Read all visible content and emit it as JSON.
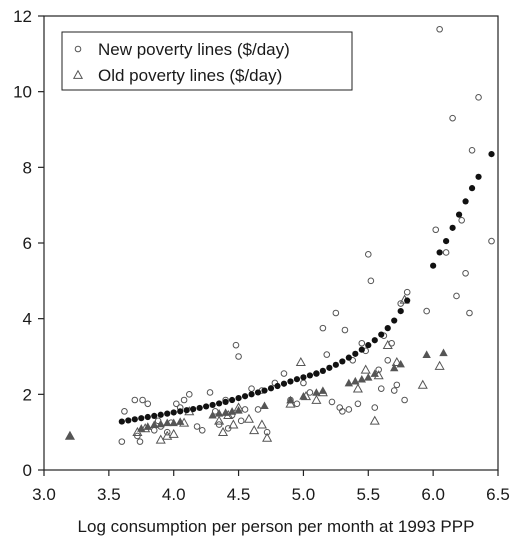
{
  "chart_data": {
    "type": "scatter",
    "title": "",
    "xlabel": "Log consumption per person per month at 1993 PPP",
    "ylabel": "",
    "xlim": [
      3.0,
      6.5
    ],
    "ylim": [
      0,
      12
    ],
    "xticks": [
      3.0,
      3.5,
      4.0,
      4.5,
      5.0,
      5.5,
      6.0,
      6.5
    ],
    "xtick_labels": [
      "3.0",
      "3.5",
      "4.0",
      "4.5",
      "5.0",
      "5.5",
      "6.0",
      "6.5"
    ],
    "yticks": [
      0,
      2,
      4,
      6,
      8,
      10,
      12
    ],
    "ytick_labels": [
      "0",
      "2",
      "4",
      "6",
      "8",
      "10",
      "12"
    ],
    "grid": false,
    "legend": {
      "position": "top-left",
      "entries": [
        "New poverty lines ($/day)",
        "Old poverty lines ($/day)"
      ]
    },
    "series": [
      {
        "name": "New poverty lines ($/day)",
        "marker": "open-circle",
        "color": "#555555",
        "points": [
          [
            3.6,
            0.75
          ],
          [
            3.62,
            1.55
          ],
          [
            3.7,
            1.85
          ],
          [
            3.72,
            0.9
          ],
          [
            3.74,
            0.75
          ],
          [
            3.76,
            1.85
          ],
          [
            3.8,
            1.75
          ],
          [
            3.85,
            1.05
          ],
          [
            3.88,
            1.3
          ],
          [
            3.9,
            1.15
          ],
          [
            3.95,
            1.0
          ],
          [
            3.98,
            1.25
          ],
          [
            4.02,
            1.75
          ],
          [
            4.05,
            1.65
          ],
          [
            4.08,
            1.85
          ],
          [
            4.12,
            2.0
          ],
          [
            4.18,
            1.15
          ],
          [
            4.22,
            1.05
          ],
          [
            4.28,
            2.05
          ],
          [
            4.32,
            1.55
          ],
          [
            4.35,
            1.2
          ],
          [
            4.4,
            1.85
          ],
          [
            4.42,
            1.1
          ],
          [
            4.45,
            1.45
          ],
          [
            4.48,
            3.3
          ],
          [
            4.5,
            3.0
          ],
          [
            4.52,
            1.3
          ],
          [
            4.55,
            1.6
          ],
          [
            4.6,
            2.15
          ],
          [
            4.65,
            1.6
          ],
          [
            4.68,
            2.1
          ],
          [
            4.72,
            1.0
          ],
          [
            4.78,
            2.3
          ],
          [
            4.85,
            2.55
          ],
          [
            4.9,
            1.85
          ],
          [
            4.95,
            1.75
          ],
          [
            5.0,
            2.3
          ],
          [
            5.05,
            2.05
          ],
          [
            5.1,
            2.55
          ],
          [
            5.15,
            3.75
          ],
          [
            5.18,
            3.05
          ],
          [
            5.22,
            1.8
          ],
          [
            5.25,
            4.15
          ],
          [
            5.28,
            1.65
          ],
          [
            5.3,
            1.55
          ],
          [
            5.32,
            3.7
          ],
          [
            5.35,
            1.6
          ],
          [
            5.38,
            2.9
          ],
          [
            5.42,
            1.75
          ],
          [
            5.45,
            3.35
          ],
          [
            5.48,
            3.15
          ],
          [
            5.5,
            5.7
          ],
          [
            5.52,
            5.0
          ],
          [
            5.55,
            1.65
          ],
          [
            5.58,
            2.65
          ],
          [
            5.6,
            2.15
          ],
          [
            5.62,
            3.55
          ],
          [
            5.65,
            2.9
          ],
          [
            5.68,
            3.35
          ],
          [
            5.7,
            2.1
          ],
          [
            5.72,
            2.25
          ],
          [
            5.75,
            4.4
          ],
          [
            5.78,
            1.85
          ],
          [
            5.8,
            4.7
          ],
          [
            5.95,
            4.2
          ],
          [
            6.02,
            6.35
          ],
          [
            6.05,
            11.65
          ],
          [
            6.1,
            5.75
          ],
          [
            6.15,
            9.3
          ],
          [
            6.18,
            4.6
          ],
          [
            6.22,
            6.6
          ],
          [
            6.25,
            5.2
          ],
          [
            6.28,
            4.15
          ],
          [
            6.3,
            8.45
          ],
          [
            6.35,
            9.85
          ],
          [
            6.45,
            6.05
          ]
        ]
      },
      {
        "name": "Old poverty lines ($/day)",
        "marker": "open-triangle",
        "color": "#555555",
        "points": [
          [
            3.2,
            0.9
          ],
          [
            3.72,
            1.0
          ],
          [
            3.78,
            1.1
          ],
          [
            3.9,
            0.8
          ],
          [
            3.95,
            0.9
          ],
          [
            4.0,
            0.95
          ],
          [
            4.08,
            1.25
          ],
          [
            4.12,
            1.55
          ],
          [
            4.35,
            1.3
          ],
          [
            4.38,
            1.0
          ],
          [
            4.42,
            1.45
          ],
          [
            4.46,
            1.2
          ],
          [
            4.5,
            1.65
          ],
          [
            4.58,
            1.35
          ],
          [
            4.62,
            1.05
          ],
          [
            4.68,
            1.2
          ],
          [
            4.72,
            0.85
          ],
          [
            4.9,
            1.75
          ],
          [
            4.98,
            2.85
          ],
          [
            5.02,
            1.95
          ],
          [
            5.1,
            1.85
          ],
          [
            5.15,
            2.05
          ],
          [
            5.42,
            2.15
          ],
          [
            5.48,
            2.65
          ],
          [
            5.55,
            1.3
          ],
          [
            5.58,
            2.5
          ],
          [
            5.65,
            3.3
          ],
          [
            5.72,
            2.85
          ],
          [
            5.78,
            4.5
          ],
          [
            5.92,
            2.25
          ],
          [
            6.05,
            2.75
          ]
        ]
      },
      {
        "name": "",
        "marker": "filled-circle",
        "color": "#111111",
        "points": [
          [
            3.6,
            1.28
          ],
          [
            3.65,
            1.31
          ],
          [
            3.7,
            1.34
          ],
          [
            3.75,
            1.37
          ],
          [
            3.8,
            1.4
          ],
          [
            3.85,
            1.43
          ],
          [
            3.9,
            1.46
          ],
          [
            3.95,
            1.49
          ],
          [
            4.0,
            1.52
          ],
          [
            4.05,
            1.55
          ],
          [
            4.1,
            1.58
          ],
          [
            4.15,
            1.61
          ],
          [
            4.2,
            1.64
          ],
          [
            4.25,
            1.68
          ],
          [
            4.3,
            1.72
          ],
          [
            4.35,
            1.76
          ],
          [
            4.4,
            1.8
          ],
          [
            4.45,
            1.85
          ],
          [
            4.5,
            1.9
          ],
          [
            4.55,
            1.95
          ],
          [
            4.6,
            2.0
          ],
          [
            4.65,
            2.05
          ],
          [
            4.7,
            2.1
          ],
          [
            4.75,
            2.16
          ],
          [
            4.8,
            2.22
          ],
          [
            4.85,
            2.28
          ],
          [
            4.9,
            2.34
          ],
          [
            4.95,
            2.4
          ],
          [
            5.0,
            2.45
          ],
          [
            5.05,
            2.5
          ],
          [
            5.1,
            2.55
          ],
          [
            5.15,
            2.62
          ],
          [
            5.2,
            2.7
          ],
          [
            5.25,
            2.78
          ],
          [
            5.3,
            2.87
          ],
          [
            5.35,
            2.97
          ],
          [
            5.4,
            3.07
          ],
          [
            5.45,
            3.18
          ],
          [
            5.5,
            3.3
          ],
          [
            5.55,
            3.43
          ],
          [
            5.6,
            3.58
          ],
          [
            5.65,
            3.75
          ],
          [
            5.7,
            3.95
          ],
          [
            5.75,
            4.2
          ],
          [
            5.8,
            4.48
          ],
          [
            6.0,
            5.4
          ],
          [
            6.05,
            5.75
          ],
          [
            6.1,
            6.05
          ],
          [
            6.15,
            6.4
          ],
          [
            6.2,
            6.75
          ],
          [
            6.25,
            7.1
          ],
          [
            6.3,
            7.45
          ],
          [
            6.35,
            7.75
          ],
          [
            6.45,
            8.35
          ]
        ]
      },
      {
        "name": "",
        "marker": "filled-triangle",
        "color": "#555555",
        "points": [
          [
            3.2,
            0.9
          ],
          [
            3.75,
            1.1
          ],
          [
            3.8,
            1.15
          ],
          [
            3.85,
            1.2
          ],
          [
            3.9,
            1.22
          ],
          [
            3.95,
            1.25
          ],
          [
            4.0,
            1.25
          ],
          [
            4.05,
            1.28
          ],
          [
            4.3,
            1.45
          ],
          [
            4.35,
            1.5
          ],
          [
            4.4,
            1.52
          ],
          [
            4.45,
            1.55
          ],
          [
            4.5,
            1.58
          ],
          [
            4.7,
            1.7
          ],
          [
            4.9,
            1.85
          ],
          [
            5.0,
            1.95
          ],
          [
            5.1,
            2.05
          ],
          [
            5.15,
            2.1
          ],
          [
            5.35,
            2.3
          ],
          [
            5.4,
            2.35
          ],
          [
            5.45,
            2.4
          ],
          [
            5.5,
            2.45
          ],
          [
            5.55,
            2.55
          ],
          [
            5.7,
            2.7
          ],
          [
            5.75,
            2.8
          ],
          [
            5.95,
            3.05
          ],
          [
            6.08,
            3.1
          ]
        ]
      }
    ]
  }
}
